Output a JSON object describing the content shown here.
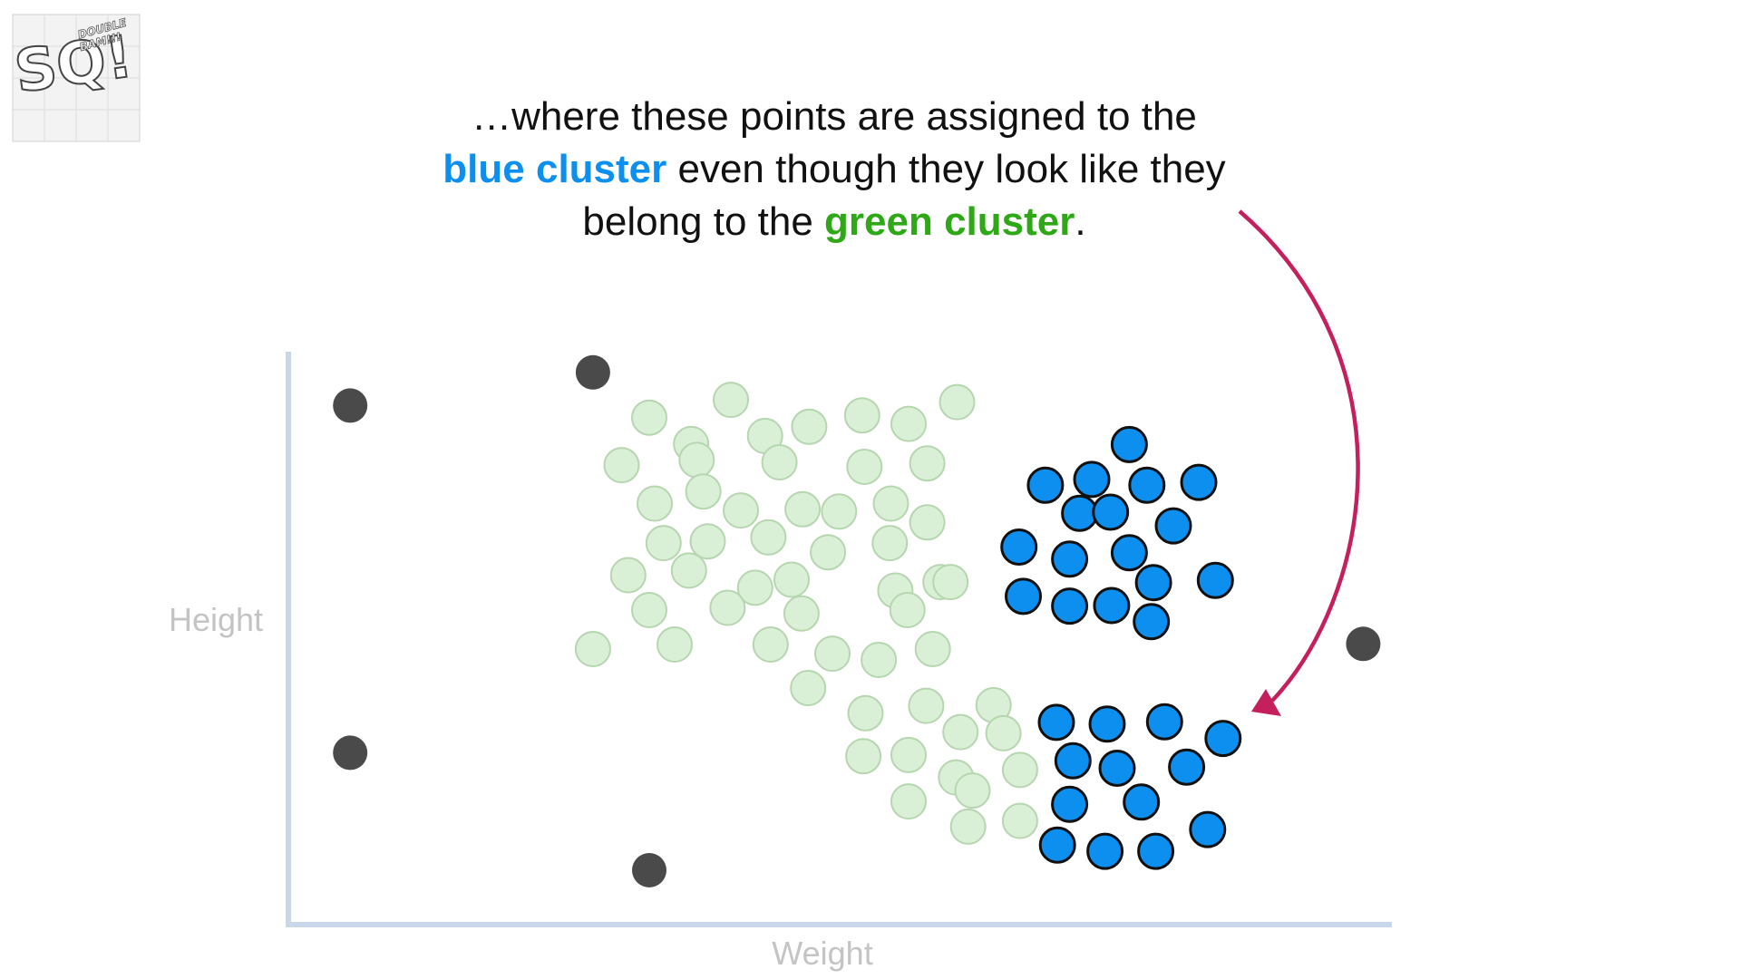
{
  "logo": {
    "text_main": "SQ!",
    "text_small": "DOUBLE BAM!!!"
  },
  "caption": {
    "line1": "…where these points are assigned to the",
    "line2_highlight": "blue cluster",
    "line2_rest": " even though they look like they",
    "line3_start": "belong to the ",
    "line3_highlight": "green cluster",
    "line3_end": "."
  },
  "colors": {
    "blue_cluster": "#0d8ff0",
    "green_cluster": "#2ea817",
    "green_points_fill": "#daf0d6",
    "green_points_stroke": "#b6d6b0",
    "outlier_points": "#4a4a4a",
    "axis": "#c8d8ea",
    "arrow": "#c4205e"
  },
  "chart_data": {
    "type": "scatter",
    "xlabel": "Weight",
    "ylabel": "Height",
    "xlim": [
      0,
      100
    ],
    "ylim": [
      0,
      100
    ],
    "grid": false,
    "series": [
      {
        "name": "green cluster",
        "style": "faded-green",
        "points": [
          [
            32.7,
            88.5
          ],
          [
            40.1,
            91.6
          ],
          [
            52.0,
            88.9
          ],
          [
            56.2,
            87.4
          ],
          [
            60.6,
            91.2
          ],
          [
            36.5,
            83.9
          ],
          [
            43.2,
            85.3
          ],
          [
            47.2,
            86.9
          ],
          [
            30.2,
            80.2
          ],
          [
            37.0,
            81.1
          ],
          [
            44.5,
            80.7
          ],
          [
            52.2,
            79.9
          ],
          [
            57.9,
            80.5
          ],
          [
            33.2,
            73.5
          ],
          [
            37.6,
            75.6
          ],
          [
            41.0,
            72.3
          ],
          [
            46.6,
            72.5
          ],
          [
            49.9,
            72.1
          ],
          [
            54.6,
            73.5
          ],
          [
            57.9,
            70.2
          ],
          [
            34.0,
            66.6
          ],
          [
            38.0,
            66.9
          ],
          [
            43.5,
            67.6
          ],
          [
            48.9,
            65.0
          ],
          [
            54.5,
            66.6
          ],
          [
            59.1,
            59.8
          ],
          [
            30.8,
            61.0
          ],
          [
            36.3,
            61.8
          ],
          [
            42.3,
            58.8
          ],
          [
            45.6,
            60.2
          ],
          [
            55.0,
            58.3
          ],
          [
            60.0,
            59.8
          ],
          [
            32.7,
            54.9
          ],
          [
            39.8,
            55.3
          ],
          [
            46.5,
            54.3
          ],
          [
            56.1,
            54.9
          ],
          [
            27.6,
            48.1
          ],
          [
            35.0,
            48.9
          ],
          [
            43.7,
            48.9
          ],
          [
            49.3,
            47.3
          ],
          [
            53.5,
            46.2
          ],
          [
            58.4,
            48.1
          ],
          [
            47.1,
            41.3
          ],
          [
            52.3,
            36.9
          ],
          [
            57.8,
            38.2
          ],
          [
            63.9,
            38.3
          ],
          [
            60.9,
            33.6
          ],
          [
            64.8,
            33.4
          ],
          [
            52.1,
            29.4
          ],
          [
            56.2,
            29.6
          ],
          [
            66.3,
            27.0
          ],
          [
            60.5,
            25.7
          ],
          [
            56.2,
            21.5
          ],
          [
            62.0,
            23.4
          ],
          [
            61.6,
            17.1
          ],
          [
            66.3,
            18.1
          ]
        ]
      },
      {
        "name": "blue cluster",
        "style": "bright-blue",
        "points": [
          [
            76.2,
            83.8
          ],
          [
            68.6,
            76.7
          ],
          [
            72.8,
            77.7
          ],
          [
            77.8,
            76.7
          ],
          [
            82.5,
            77.2
          ],
          [
            71.7,
            71.8
          ],
          [
            74.5,
            72.0
          ],
          [
            80.2,
            69.6
          ],
          [
            66.2,
            65.9
          ],
          [
            70.8,
            63.8
          ],
          [
            76.2,
            64.9
          ],
          [
            84.0,
            60.1
          ],
          [
            78.4,
            59.7
          ],
          [
            66.6,
            57.3
          ],
          [
            70.8,
            55.6
          ],
          [
            74.6,
            55.7
          ],
          [
            78.2,
            52.9
          ],
          [
            69.6,
            35.3
          ],
          [
            74.2,
            35.0
          ],
          [
            79.4,
            35.4
          ],
          [
            84.7,
            32.5
          ],
          [
            71.1,
            28.6
          ],
          [
            75.1,
            27.3
          ],
          [
            81.4,
            27.5
          ],
          [
            70.8,
            21.0
          ],
          [
            77.3,
            21.4
          ],
          [
            69.7,
            13.9
          ],
          [
            74.0,
            12.8
          ],
          [
            78.6,
            12.8
          ],
          [
            83.3,
            16.6
          ]
        ]
      },
      {
        "name": "outliers",
        "style": "dark-gray",
        "points": [
          [
            5.6,
            90.6
          ],
          [
            27.6,
            96.4
          ],
          [
            97.4,
            49.0
          ],
          [
            5.6,
            30.0
          ],
          [
            32.7,
            9.5
          ]
        ]
      }
    ]
  }
}
